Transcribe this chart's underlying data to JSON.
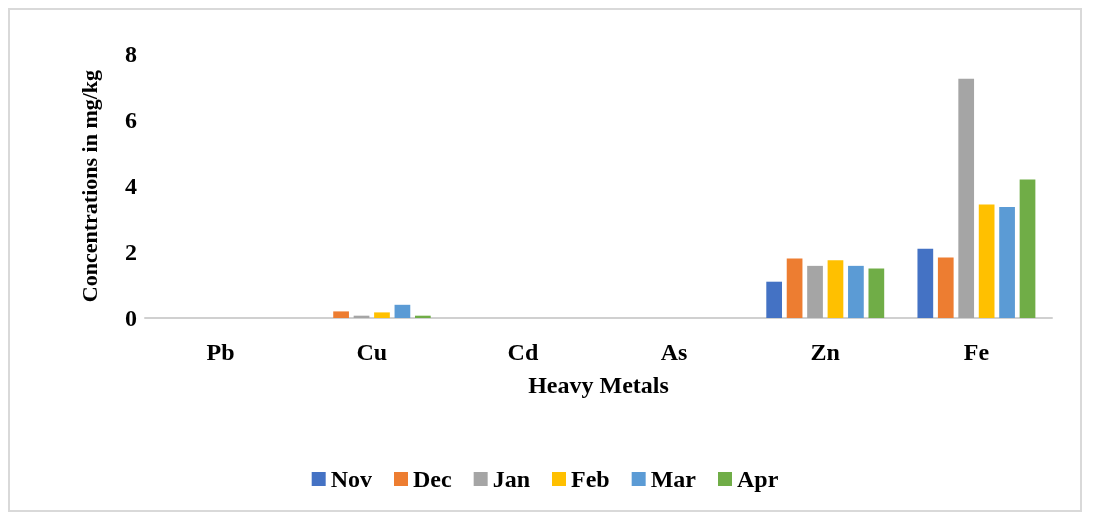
{
  "chart_data": {
    "type": "bar",
    "xlabel": "Heavy Metals",
    "ylabel": "Concentrations in mg/kg",
    "categories": [
      "Pb",
      "Cu",
      "Cd",
      "As",
      "Zn",
      "Fe"
    ],
    "series": [
      {
        "name": "Nov",
        "color": "#4472c4",
        "values": [
          0,
          0,
          0,
          0,
          1.1,
          2.1
        ]
      },
      {
        "name": "Dec",
        "color": "#ed7d31",
        "values": [
          0,
          0.2,
          0,
          0,
          1.8,
          1.83
        ]
      },
      {
        "name": "Jan",
        "color": "#a5a5a5",
        "values": [
          0,
          0.07,
          0,
          0,
          1.58,
          7.25
        ]
      },
      {
        "name": "Feb",
        "color": "#ffc000",
        "values": [
          0,
          0.17,
          0,
          0,
          1.75,
          3.44
        ]
      },
      {
        "name": "Mar",
        "color": "#5b9bd5",
        "values": [
          0,
          0.4,
          0,
          0,
          1.58,
          3.36
        ]
      },
      {
        "name": "Apr",
        "color": "#70ad47",
        "values": [
          0,
          0.07,
          0,
          0,
          1.5,
          4.2
        ]
      }
    ],
    "ylim": [
      0,
      8
    ],
    "yticks": [
      0,
      2,
      4,
      6,
      8
    ],
    "grid": false,
    "legend": "bottom"
  }
}
